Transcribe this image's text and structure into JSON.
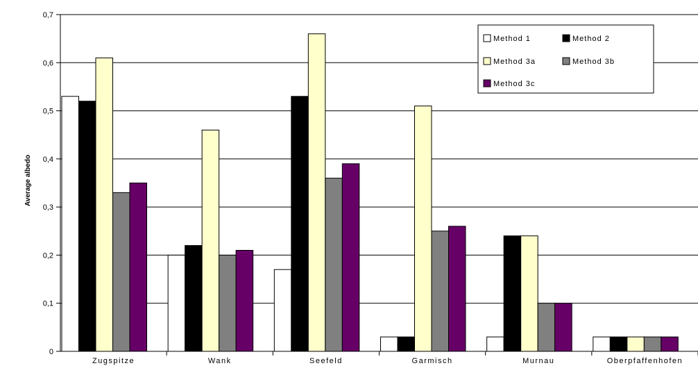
{
  "chart_data": {
    "type": "bar",
    "title": "",
    "xlabel": "",
    "ylabel": "Average albedo",
    "ylim": [
      0,
      0.7
    ],
    "yticks": [
      "0",
      "0,1",
      "0,2",
      "0,3",
      "0,4",
      "0,5",
      "0,6",
      "0,7"
    ],
    "grid": true,
    "legend_position": "top-right",
    "categories": [
      "Zugspitze",
      "Wank",
      "Seefeld",
      "Garmisch",
      "Murnau",
      "Oberpfaffenhofen"
    ],
    "series": [
      {
        "name": "Method 1",
        "color": "#FFFFFF",
        "values": [
          0.53,
          0.2,
          0.17,
          0.03,
          0.03,
          0.03
        ]
      },
      {
        "name": "Method 2",
        "color": "#000000",
        "values": [
          0.52,
          0.22,
          0.53,
          0.03,
          0.24,
          0.03
        ]
      },
      {
        "name": "Method 3a",
        "color": "#FFFFCC",
        "values": [
          0.61,
          0.46,
          0.66,
          0.51,
          0.24,
          0.03
        ]
      },
      {
        "name": "Method 3b",
        "color": "#808080",
        "values": [
          0.33,
          0.2,
          0.36,
          0.25,
          0.1,
          0.03
        ]
      },
      {
        "name": "Method 3c",
        "color": "#660066",
        "values": [
          0.35,
          0.21,
          0.39,
          0.26,
          0.1,
          0.03
        ]
      }
    ]
  }
}
